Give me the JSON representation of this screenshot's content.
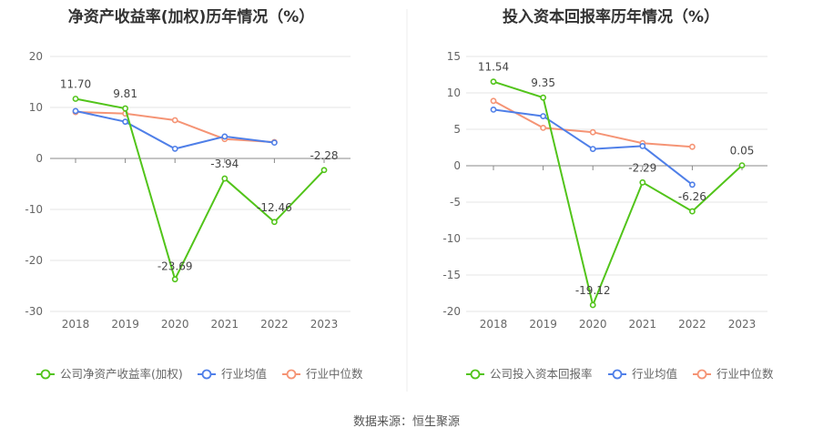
{
  "colors": {
    "company": "#52c41a",
    "industry_avg": "#4f7fe8",
    "industry_median": "#f59475",
    "grid": "#e6e6e6",
    "axis": "#888888",
    "text": "#666666",
    "title": "#333333",
    "divider": "#eeeeee"
  },
  "source_text": "数据来源：恒生聚源",
  "chart_data": [
    {
      "type": "line",
      "title": "净资产收益率(加权)历年情况（%）",
      "categories": [
        "2018",
        "2019",
        "2020",
        "2021",
        "2022",
        "2023"
      ],
      "ylim": [
        -30,
        20
      ],
      "yticks": [
        20,
        10,
        0,
        -10,
        -20,
        -30
      ],
      "grid": true,
      "legend_position": "bottom",
      "series": [
        {
          "name": "公司净资产收益率(加权)",
          "key": "company",
          "values": [
            11.7,
            9.81,
            -23.69,
            -3.94,
            -12.46,
            -2.28
          ],
          "labels": [
            "11.70",
            "9.81",
            "-23.69",
            "-3.94",
            "-12.46",
            "-2.28"
          ]
        },
        {
          "name": "行业均值",
          "key": "industry_avg",
          "values": [
            9.3,
            7.2,
            1.9,
            4.3,
            3.1,
            null
          ]
        },
        {
          "name": "行业中位数",
          "key": "industry_median",
          "values": [
            9.1,
            8.8,
            7.5,
            3.8,
            3.2,
            null
          ]
        }
      ]
    },
    {
      "type": "line",
      "title": "投入资本回报率历年情况（%）",
      "categories": [
        "2018",
        "2019",
        "2020",
        "2021",
        "2022",
        "2023"
      ],
      "ylim": [
        -20,
        15
      ],
      "yticks": [
        15,
        10,
        5,
        0,
        -5,
        -10,
        -15,
        -20
      ],
      "grid": true,
      "legend_position": "bottom",
      "series": [
        {
          "name": "公司投入资本回报率",
          "key": "company",
          "values": [
            11.54,
            9.35,
            -19.12,
            -2.29,
            -6.26,
            0.05
          ],
          "labels": [
            "11.54",
            "9.35",
            "-19.12",
            "-2.29",
            "-6.26",
            "0.05"
          ]
        },
        {
          "name": "行业均值",
          "key": "industry_avg",
          "values": [
            7.7,
            6.8,
            2.3,
            2.7,
            -2.6,
            null
          ]
        },
        {
          "name": "行业中位数",
          "key": "industry_median",
          "values": [
            8.9,
            5.2,
            4.6,
            3.1,
            2.6,
            null
          ]
        }
      ]
    }
  ]
}
